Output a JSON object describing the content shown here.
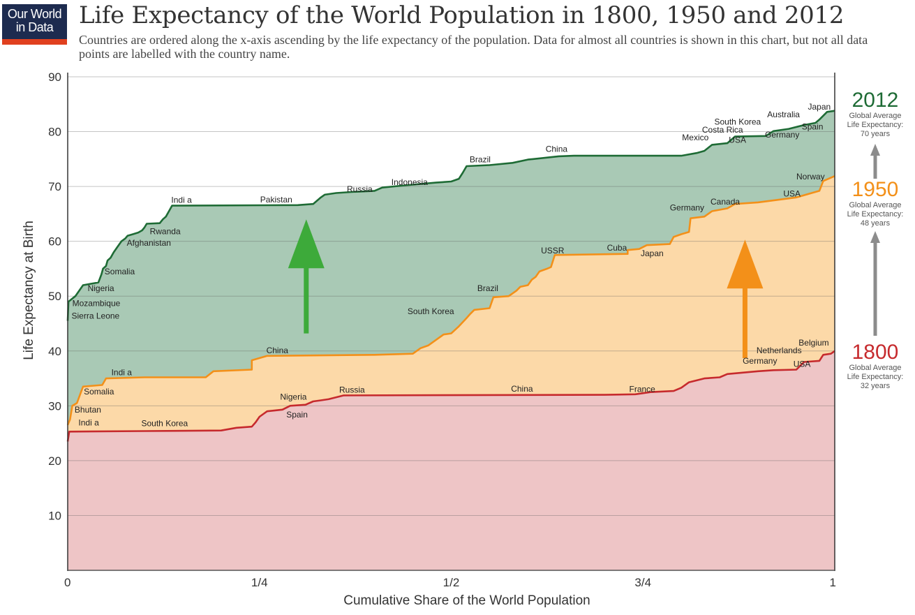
{
  "logo": {
    "line1": "Our World",
    "line2": "in Data",
    "bg_color": "#1d2b4f",
    "accent_color": "#e0401f"
  },
  "header": {
    "title": "Life Expectancy of the World Population in 1800, 1950 and 2012",
    "subtitle": "Countries are ordered along the x-axis ascending by the life expectancy of the population. Data for almost all countries is shown in this chart, but not all data points are labelled with the country name."
  },
  "chart_data": {
    "type": "area",
    "title": "Life Expectancy of the World Population in 1800, 1950 and 2012",
    "xlabel": "Cumulative Share of the World Population",
    "ylabel": "Life Expectancy at Birth",
    "xlim": [
      0,
      1
    ],
    "ylim": [
      0,
      90
    ],
    "x_ticks": [
      {
        "value": 0,
        "label": "0"
      },
      {
        "value": 0.25,
        "label": "1/4"
      },
      {
        "value": 0.5,
        "label": "1/2"
      },
      {
        "value": 0.75,
        "label": "3/4"
      },
      {
        "value": 1,
        "label": "1"
      }
    ],
    "y_ticks": [
      10,
      20,
      30,
      40,
      50,
      60,
      70,
      80,
      90
    ],
    "grid": true,
    "series": [
      {
        "name": "2012",
        "color": "#1e6b35",
        "fill": "#a9c9b5",
        "global_average_text": [
          "Global Average",
          "Life Expectancy:",
          "70 years"
        ],
        "points": [
          [
            0,
            45.5
          ],
          [
            0.001,
            49
          ],
          [
            0.01,
            50
          ],
          [
            0.015,
            51
          ],
          [
            0.02,
            52
          ],
          [
            0.04,
            52.5
          ],
          [
            0.044,
            54
          ],
          [
            0.046,
            55
          ],
          [
            0.05,
            55.5
          ],
          [
            0.052,
            56.5
          ],
          [
            0.056,
            57
          ],
          [
            0.06,
            58
          ],
          [
            0.065,
            59
          ],
          [
            0.07,
            60
          ],
          [
            0.075,
            60.5
          ],
          [
            0.078,
            61
          ],
          [
            0.085,
            61.3
          ],
          [
            0.092,
            61.6
          ],
          [
            0.097,
            62
          ],
          [
            0.1,
            62.5
          ],
          [
            0.103,
            63.2
          ],
          [
            0.12,
            63.3
          ],
          [
            0.124,
            64
          ],
          [
            0.128,
            64.5
          ],
          [
            0.132,
            65.5
          ],
          [
            0.136,
            66.5
          ],
          [
            0.3,
            66.6
          ],
          [
            0.32,
            66.8
          ],
          [
            0.33,
            68
          ],
          [
            0.335,
            68.5
          ],
          [
            0.35,
            68.8
          ],
          [
            0.37,
            69
          ],
          [
            0.4,
            69.2
          ],
          [
            0.41,
            69.8
          ],
          [
            0.44,
            70.2
          ],
          [
            0.48,
            70.7
          ],
          [
            0.5,
            70.9
          ],
          [
            0.51,
            71.4
          ],
          [
            0.515,
            72.5
          ],
          [
            0.52,
            73.7
          ],
          [
            0.55,
            73.9
          ],
          [
            0.58,
            74.3
          ],
          [
            0.6,
            74.9
          ],
          [
            0.62,
            75.2
          ],
          [
            0.64,
            75.5
          ],
          [
            0.66,
            75.6
          ],
          [
            0.8,
            75.6
          ],
          [
            0.82,
            76.1
          ],
          [
            0.83,
            76.5
          ],
          [
            0.84,
            77.6
          ],
          [
            0.86,
            77.9
          ],
          [
            0.87,
            79.1
          ],
          [
            0.91,
            79.2
          ],
          [
            0.92,
            80.1
          ],
          [
            0.94,
            80.5
          ],
          [
            0.96,
            81.2
          ],
          [
            0.975,
            81.6
          ],
          [
            0.98,
            82.2
          ],
          [
            0.99,
            83.6
          ],
          [
            1.0,
            83.8
          ]
        ]
      },
      {
        "name": "1950",
        "color": "#f39019",
        "fill": "#fcd9a8",
        "global_average_text": [
          "Global Average",
          "Life Expectancy:",
          "48 years"
        ],
        "points": [
          [
            0,
            26.5
          ],
          [
            0.003,
            27.5
          ],
          [
            0.006,
            30
          ],
          [
            0.012,
            30.5
          ],
          [
            0.016,
            32
          ],
          [
            0.02,
            33.5
          ],
          [
            0.045,
            33.8
          ],
          [
            0.05,
            35
          ],
          [
            0.1,
            35.2
          ],
          [
            0.18,
            35.2
          ],
          [
            0.19,
            36.3
          ],
          [
            0.24,
            36.6
          ],
          [
            0.24,
            38.3
          ],
          [
            0.26,
            39.1
          ],
          [
            0.4,
            39.3
          ],
          [
            0.45,
            39.5
          ],
          [
            0.46,
            40.5
          ],
          [
            0.47,
            41
          ],
          [
            0.48,
            42
          ],
          [
            0.49,
            43
          ],
          [
            0.5,
            43.2
          ],
          [
            0.51,
            44.5
          ],
          [
            0.52,
            46
          ],
          [
            0.525,
            46.8
          ],
          [
            0.53,
            47.5
          ],
          [
            0.55,
            47.8
          ],
          [
            0.555,
            49.8
          ],
          [
            0.575,
            50
          ],
          [
            0.58,
            50.5
          ],
          [
            0.585,
            51
          ],
          [
            0.59,
            51.7
          ],
          [
            0.6,
            52
          ],
          [
            0.605,
            53
          ],
          [
            0.61,
            53.5
          ],
          [
            0.615,
            54.5
          ],
          [
            0.625,
            55
          ],
          [
            0.63,
            55.3
          ],
          [
            0.635,
            57.5
          ],
          [
            0.73,
            57.7
          ],
          [
            0.73,
            58.4
          ],
          [
            0.745,
            58.6
          ],
          [
            0.755,
            59.3
          ],
          [
            0.785,
            59.5
          ],
          [
            0.79,
            60.8
          ],
          [
            0.8,
            61.3
          ],
          [
            0.81,
            61.7
          ],
          [
            0.812,
            64.2
          ],
          [
            0.83,
            64.5
          ],
          [
            0.84,
            65.5
          ],
          [
            0.86,
            66
          ],
          [
            0.87,
            66.8
          ],
          [
            0.9,
            67.1
          ],
          [
            0.95,
            68
          ],
          [
            0.97,
            68.8
          ],
          [
            0.98,
            69.2
          ],
          [
            0.985,
            71
          ],
          [
            1.0,
            71.9
          ]
        ]
      },
      {
        "name": "1800",
        "color": "#c62a2d",
        "fill": "#eec5c6",
        "global_average_text": [
          "Global Average",
          "Life Expectancy:",
          "32 years"
        ],
        "points": [
          [
            0,
            23.5
          ],
          [
            0.002,
            25.3
          ],
          [
            0.1,
            25.4
          ],
          [
            0.2,
            25.5
          ],
          [
            0.22,
            26
          ],
          [
            0.24,
            26.2
          ],
          [
            0.245,
            27
          ],
          [
            0.25,
            28
          ],
          [
            0.26,
            29
          ],
          [
            0.28,
            29.3
          ],
          [
            0.29,
            30
          ],
          [
            0.31,
            30.2
          ],
          [
            0.32,
            30.8
          ],
          [
            0.33,
            31
          ],
          [
            0.34,
            31.2
          ],
          [
            0.36,
            31.9
          ],
          [
            0.7,
            32
          ],
          [
            0.74,
            32.1
          ],
          [
            0.76,
            32.5
          ],
          [
            0.79,
            32.7
          ],
          [
            0.8,
            33.3
          ],
          [
            0.81,
            34.3
          ],
          [
            0.83,
            35
          ],
          [
            0.85,
            35.2
          ],
          [
            0.86,
            35.8
          ],
          [
            0.9,
            36.3
          ],
          [
            0.92,
            36.5
          ],
          [
            0.95,
            36.6
          ],
          [
            0.96,
            38
          ],
          [
            0.98,
            38.2
          ],
          [
            0.985,
            39.3
          ],
          [
            0.995,
            39.5
          ],
          [
            1.0,
            40
          ]
        ]
      }
    ],
    "annotations": [
      {
        "text": "Mozambique",
        "x": 0.006,
        "y": 48.2
      },
      {
        "text": "Sierra Leone",
        "x": 0.005,
        "y": 45.9
      },
      {
        "text": "Nigeria",
        "x": 0.026,
        "y": 50.9
      },
      {
        "text": "Somalia",
        "x": 0.048,
        "y": 54.0
      },
      {
        "text": "Afghanistan",
        "x": 0.077,
        "y": 59.2
      },
      {
        "text": "Rwanda",
        "x": 0.107,
        "y": 61.3
      },
      {
        "text": "Indi a",
        "x": 0.135,
        "y": 67.0
      },
      {
        "text": "Pakistan",
        "x": 0.251,
        "y": 67.1
      },
      {
        "text": "Russia",
        "x": 0.364,
        "y": 69.0
      },
      {
        "text": "Indonesia",
        "x": 0.422,
        "y": 70.3
      },
      {
        "text": "Brazil",
        "x": 0.524,
        "y": 74.4
      },
      {
        "text": "China",
        "x": 0.623,
        "y": 76.3
      },
      {
        "text": "Mexico",
        "x": 0.801,
        "y": 78.4
      },
      {
        "text": "Costa Rica",
        "x": 0.827,
        "y": 79.8
      },
      {
        "text": "South Korea",
        "x": 0.843,
        "y": 81.3
      },
      {
        "text": "USA",
        "x": 0.862,
        "y": 78.0
      },
      {
        "text": "Germany",
        "x": 0.909,
        "y": 78.9
      },
      {
        "text": "Australia",
        "x": 0.912,
        "y": 82.6
      },
      {
        "text": "Spain",
        "x": 0.957,
        "y": 80.4
      },
      {
        "text": "Japan",
        "x": 0.965,
        "y": 84.0
      },
      {
        "text": "Norway",
        "x": 0.95,
        "y": 71.3
      },
      {
        "text": "USA",
        "x": 0.933,
        "y": 68.2
      },
      {
        "text": "Canada",
        "x": 0.838,
        "y": 66.7
      },
      {
        "text": "Germany",
        "x": 0.785,
        "y": 65.6
      },
      {
        "text": "Cuba",
        "x": 0.703,
        "y": 58.3
      },
      {
        "text": "Japan",
        "x": 0.747,
        "y": 57.3
      },
      {
        "text": "USSR",
        "x": 0.617,
        "y": 57.8
      },
      {
        "text": "Brazil",
        "x": 0.534,
        "y": 50.9
      },
      {
        "text": "South Korea",
        "x": 0.443,
        "y": 46.7
      },
      {
        "text": "China",
        "x": 0.259,
        "y": 39.6
      },
      {
        "text": "Indi a",
        "x": 0.057,
        "y": 35.6
      },
      {
        "text": "Somalia",
        "x": 0.021,
        "y": 32.1
      },
      {
        "text": "Bhutan",
        "x": 0.009,
        "y": 28.8
      },
      {
        "text": "Indi a",
        "x": 0.014,
        "y": 26.4
      },
      {
        "text": "South Korea",
        "x": 0.096,
        "y": 26.3
      },
      {
        "text": "Nigeria",
        "x": 0.277,
        "y": 31.1
      },
      {
        "text": "Spain",
        "x": 0.285,
        "y": 27.9
      },
      {
        "text": "Russia",
        "x": 0.354,
        "y": 32.4
      },
      {
        "text": "China",
        "x": 0.578,
        "y": 32.6
      },
      {
        "text": "France",
        "x": 0.732,
        "y": 32.5
      },
      {
        "text": "Germany",
        "x": 0.88,
        "y": 37.7
      },
      {
        "text": "USA",
        "x": 0.946,
        "y": 37.1
      },
      {
        "text": "Netherlands",
        "x": 0.898,
        "y": 39.6
      },
      {
        "text": "Belgium",
        "x": 0.953,
        "y": 41.0
      }
    ],
    "arrows": [
      {
        "name": "improvement-arrow-green",
        "color": "#3daa3a",
        "x": 0.311,
        "y_from": 43.2,
        "y_to": 64.0
      },
      {
        "name": "improvement-arrow-orange",
        "color": "#f39019",
        "x": 0.883,
        "y_from": 38.7,
        "y_to": 60.3
      }
    ]
  },
  "side_panel": {
    "arrow_color": "#8c8c8c",
    "entries": [
      {
        "year": "2012",
        "color": "#1e6b35",
        "line1": "Global Average",
        "line2": "Life Expectancy:",
        "line3": "70 years"
      },
      {
        "year": "1950",
        "color": "#f39019",
        "line1": "Global Average",
        "line2": "Life Expectancy:",
        "line3": "48 years"
      },
      {
        "year": "1800",
        "color": "#c62a2d",
        "line1": "Global Average",
        "line2": "Life Expectancy:",
        "line3": "32 years"
      }
    ]
  }
}
